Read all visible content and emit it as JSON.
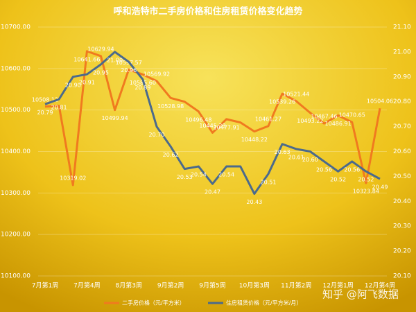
{
  "chart_data": {
    "type": "line",
    "title": "呼和浩特市二手房价格和住房租赁价格变化趋势",
    "categories": [
      "7月第1周",
      null,
      null,
      "7月第4周",
      null,
      null,
      "8月第3周",
      null,
      null,
      "9月第2周",
      null,
      null,
      "9月第5周",
      null,
      null,
      "10月第3周",
      null,
      null,
      "11月第2周",
      null,
      null,
      "12月第1周",
      null,
      null,
      "12月第4周"
    ],
    "series": [
      {
        "name": "二手房价格（元/平方米）",
        "color": "#f07a1f",
        "values": [
          10508.12,
          10510,
          10319.02,
          10641.66,
          10629.94,
          10499.94,
          10597.57,
          10585.6,
          10569.92,
          10528.98,
          10520,
          10496.48,
          10445.29,
          10477.91,
          10470,
          10448.22,
          10461.27,
          10539.26,
          10521.44,
          10493.22,
          10467.46,
          10486.91,
          10470.65,
          10323.84,
          10504.06
        ],
        "value_labels": [
          "10508.12",
          null,
          "10319.02",
          "10641.66",
          "10629.94",
          "10499.94",
          "10597.57",
          "10585.60",
          "10569.92",
          "10528.98",
          null,
          "10496.48",
          "10445.29",
          "10477.91",
          null,
          "10448.22",
          "10461.27",
          "10539.26",
          "10521.44",
          "10493.22",
          "10467.46",
          "10486.91",
          "10470.65",
          "10323.84",
          "10504.06"
        ]
      },
      {
        "name": "住房租赁价格（元/平方米/月）",
        "color": "#4b6a8c",
        "axis": "y2",
        "values": [
          20.79,
          20.81,
          20.9,
          20.91,
          20.95,
          21,
          20.96,
          20.89,
          20.7,
          20.62,
          20.53,
          20.54,
          20.47,
          20.54,
          20.54,
          20.43,
          20.51,
          20.63,
          20.61,
          20.6,
          20.56,
          20.52,
          20.56,
          20.52,
          20.49
        ],
        "value_labels": [
          "20.79",
          "20.81",
          "20.90",
          "20.91",
          "20.95",
          "21.00",
          "20.96",
          "20.89",
          "20.70",
          "20.62",
          "20.53",
          "20.54",
          "20.47",
          "20.54",
          null,
          "20.43",
          "20.51",
          "20.63",
          "20.61",
          "20.60",
          "20.56",
          "20.52",
          "20.56",
          "20.52",
          "20.49"
        ]
      }
    ],
    "ylim": [
      10100,
      10700
    ],
    "yticks": [
      {
        "value": 10100,
        "label": "10100.00"
      },
      {
        "value": 10200,
        "label": "10200.00"
      },
      {
        "value": 10300,
        "label": "10300.00"
      },
      {
        "value": 10400,
        "label": "10400.00"
      },
      {
        "value": 10500,
        "label": "10500.00"
      },
      {
        "value": 10600,
        "label": "10600.00"
      },
      {
        "value": 10700,
        "label": "10700.00"
      }
    ],
    "y2lim": [
      20.1,
      21.1
    ],
    "y2ticks": [
      {
        "value": 20.1,
        "label": "20.10"
      },
      {
        "value": 20.2,
        "label": "20.20"
      },
      {
        "value": 20.3,
        "label": "20.30"
      },
      {
        "value": 20.4,
        "label": "20.40"
      },
      {
        "value": 20.5,
        "label": "20.50"
      },
      {
        "value": 20.6,
        "label": "20.60"
      },
      {
        "value": 20.7,
        "label": "20.70"
      },
      {
        "value": 20.8,
        "label": "20.80"
      },
      {
        "value": 20.9,
        "label": "20.90"
      },
      {
        "value": 21,
        "label": "21.00"
      },
      {
        "value": 21.1,
        "label": "21.10"
      }
    ],
    "legend": "bottom",
    "watermark": "知乎 @阿飞数据"
  }
}
